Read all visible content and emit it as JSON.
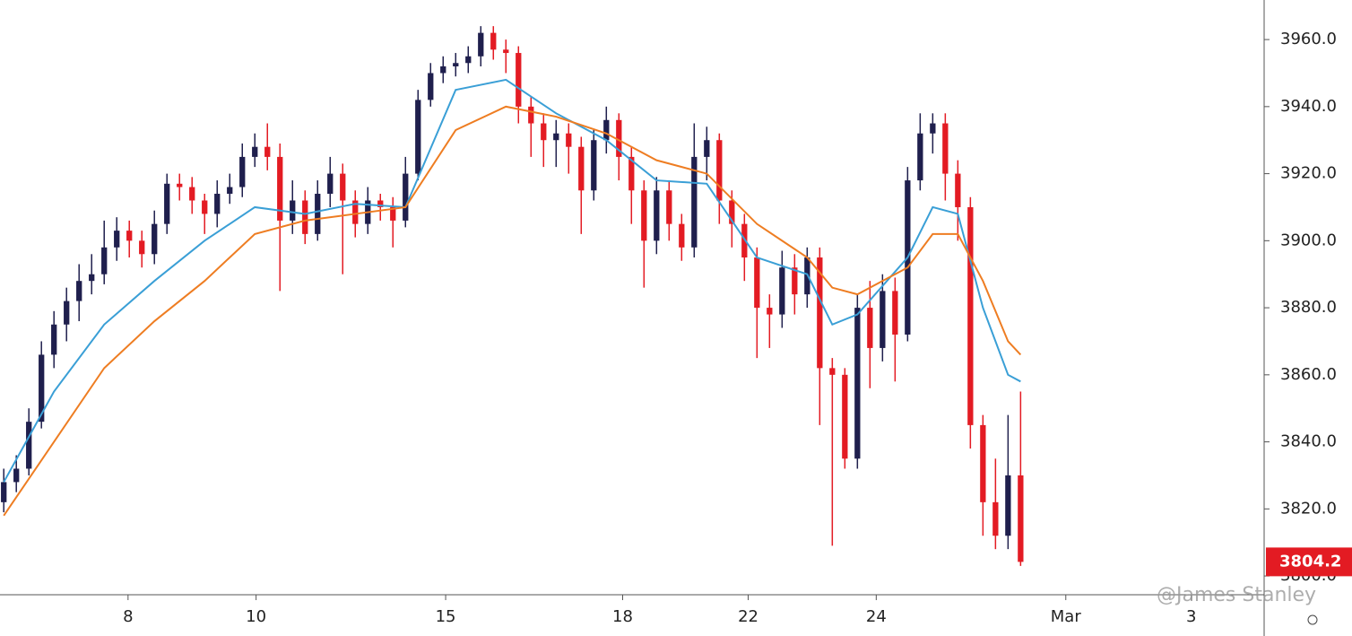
{
  "chart_data": {
    "type": "candlestick",
    "x": [
      0,
      1,
      2,
      3,
      4,
      5,
      6,
      7,
      8,
      9,
      10,
      11,
      12,
      13,
      14,
      15,
      16,
      17,
      18,
      19,
      20,
      21,
      22,
      23,
      24,
      25,
      26,
      27,
      28,
      29,
      30,
      31,
      32,
      33,
      34,
      35,
      36,
      37,
      38,
      39,
      40,
      41,
      42,
      43,
      44,
      45,
      46,
      47,
      48,
      49,
      50,
      51,
      52,
      53,
      54,
      55,
      56,
      57,
      58,
      59,
      60,
      61,
      62,
      63,
      64,
      65,
      66,
      67,
      68,
      69,
      70,
      71,
      72,
      73,
      74,
      75,
      76,
      77,
      78,
      79,
      80,
      81
    ],
    "open": [
      3822,
      3828,
      3832,
      3846,
      3866,
      3875,
      3882,
      3888,
      3890,
      3898,
      3903,
      3900,
      3896,
      3905,
      3917,
      3916,
      3912,
      3908,
      3914,
      3916,
      3925,
      3928,
      3925,
      3906,
      3912,
      3902,
      3914,
      3920,
      3912,
      3905,
      3912,
      3910,
      3906,
      3920,
      3942,
      3950,
      3952,
      3953,
      3955,
      3962,
      3957,
      3956,
      3940,
      3935,
      3930,
      3932,
      3928,
      3915,
      3930,
      3936,
      3925,
      3915,
      3900,
      3915,
      3905,
      3898,
      3925,
      3930,
      3912,
      3905,
      3895,
      3880,
      3878,
      3892,
      3884,
      3895,
      3862,
      3860,
      3835,
      3880,
      3868,
      3885,
      3872,
      3918,
      3932,
      3935,
      3920,
      3910,
      3845,
      3822,
      3812,
      3830
    ],
    "high": [
      3832,
      3836,
      3850,
      3870,
      3879,
      3886,
      3893,
      3896,
      3906,
      3907,
      3906,
      3903,
      3909,
      3920,
      3920,
      3919,
      3914,
      3918,
      3920,
      3929,
      3932,
      3935,
      3929,
      3918,
      3915,
      3918,
      3925,
      3923,
      3915,
      3916,
      3914,
      3913,
      3925,
      3945,
      3953,
      3955,
      3956,
      3958,
      3964,
      3964,
      3960,
      3958,
      3943,
      3938,
      3936,
      3935,
      3931,
      3933,
      3940,
      3938,
      3928,
      3918,
      3919,
      3918,
      3908,
      3935,
      3934,
      3932,
      3915,
      3908,
      3898,
      3884,
      3897,
      3896,
      3898,
      3898,
      3865,
      3862,
      3884,
      3888,
      3890,
      3889,
      3922,
      3938,
      3938,
      3938,
      3924,
      3913,
      3848,
      3835,
      3848,
      3855
    ],
    "low": [
      3819,
      3825,
      3830,
      3844,
      3862,
      3870,
      3876,
      3884,
      3887,
      3894,
      3895,
      3892,
      3893,
      3902,
      3912,
      3908,
      3902,
      3904,
      3911,
      3913,
      3922,
      3921,
      3885,
      3902,
      3899,
      3900,
      3910,
      3890,
      3901,
      3902,
      3906,
      3898,
      3904,
      3918,
      3940,
      3947,
      3949,
      3950,
      3952,
      3954,
      3950,
      3935,
      3925,
      3922,
      3922,
      3920,
      3902,
      3912,
      3926,
      3918,
      3905,
      3886,
      3896,
      3900,
      3894,
      3895,
      3918,
      3905,
      3898,
      3888,
      3865,
      3868,
      3874,
      3878,
      3880,
      3845,
      3809,
      3832,
      3832,
      3856,
      3864,
      3858,
      3870,
      3915,
      3926,
      3912,
      3900,
      3838,
      3812,
      3808,
      3808,
      3803
    ],
    "close": [
      3828,
      3832,
      3846,
      3866,
      3875,
      3882,
      3888,
      3890,
      3898,
      3903,
      3900,
      3896,
      3905,
      3917,
      3916,
      3912,
      3908,
      3914,
      3916,
      3925,
      3928,
      3925,
      3906,
      3912,
      3902,
      3914,
      3920,
      3912,
      3905,
      3912,
      3910,
      3906,
      3920,
      3942,
      3950,
      3952,
      3953,
      3955,
      3962,
      3957,
      3956,
      3940,
      3935,
      3930,
      3932,
      3928,
      3915,
      3930,
      3936,
      3925,
      3915,
      3900,
      3915,
      3905,
      3898,
      3925,
      3930,
      3912,
      3905,
      3895,
      3880,
      3878,
      3892,
      3884,
      3895,
      3862,
      3860,
      3835,
      3880,
      3868,
      3885,
      3872,
      3918,
      3932,
      3935,
      3920,
      3910,
      3845,
      3822,
      3812,
      3830,
      3804.2
    ],
    "up_color": "#1f1f4d",
    "down_color": "#e31b23",
    "overlays": [
      {
        "color": "#3a9fd6",
        "x": [
          0,
          4,
          8,
          12,
          16,
          20,
          24,
          28,
          32,
          36,
          40,
          44,
          48,
          52,
          56,
          60,
          64,
          66,
          68,
          72,
          74,
          76,
          78,
          80,
          81
        ],
        "values": [
          3828,
          3855,
          3875,
          3888,
          3900,
          3910,
          3908,
          3911,
          3910,
          3945,
          3948,
          3938,
          3930,
          3918,
          3917,
          3895,
          3890,
          3875,
          3878,
          3895,
          3910,
          3908,
          3880,
          3860,
          3858
        ]
      },
      {
        "color": "#ee7d22",
        "x": [
          0,
          4,
          8,
          12,
          16,
          20,
          24,
          28,
          32,
          36,
          40,
          44,
          48,
          52,
          56,
          60,
          64,
          66,
          68,
          72,
          74,
          76,
          78,
          80,
          81
        ],
        "values": [
          3818,
          3840,
          3862,
          3876,
          3888,
          3902,
          3906,
          3908,
          3910,
          3933,
          3940,
          3937,
          3932,
          3924,
          3920,
          3905,
          3895,
          3886,
          3884,
          3892,
          3902,
          3902,
          3888,
          3870,
          3866
        ]
      }
    ],
    "xlim": [
      -0.3,
      100.4
    ],
    "ylim": [
      3794.4,
      3971.8
    ],
    "xticks": [
      {
        "value": 9.9,
        "label": "8"
      },
      {
        "value": 20.1,
        "label": "10"
      },
      {
        "value": 35.2,
        "label": "15"
      },
      {
        "value": 49.3,
        "label": "18"
      },
      {
        "value": 59.3,
        "label": "22"
      },
      {
        "value": 69.5,
        "label": "24"
      },
      {
        "value": 84.6,
        "label": "Mar"
      },
      {
        "value": 94.6,
        "label": "3"
      }
    ],
    "yticks": [
      {
        "value": 3800,
        "label": "3800.0"
      },
      {
        "value": 3820,
        "label": "3820.0"
      },
      {
        "value": 3840,
        "label": "3840.0"
      },
      {
        "value": 3860,
        "label": "3860.0"
      },
      {
        "value": 3880,
        "label": "3880.0"
      },
      {
        "value": 3900,
        "label": "3900.0"
      },
      {
        "value": 3920,
        "label": "3920.0"
      },
      {
        "value": 3940,
        "label": "3940.0"
      },
      {
        "value": 3960,
        "label": "3960.0"
      }
    ],
    "watermark": "@James Stanley"
  }
}
